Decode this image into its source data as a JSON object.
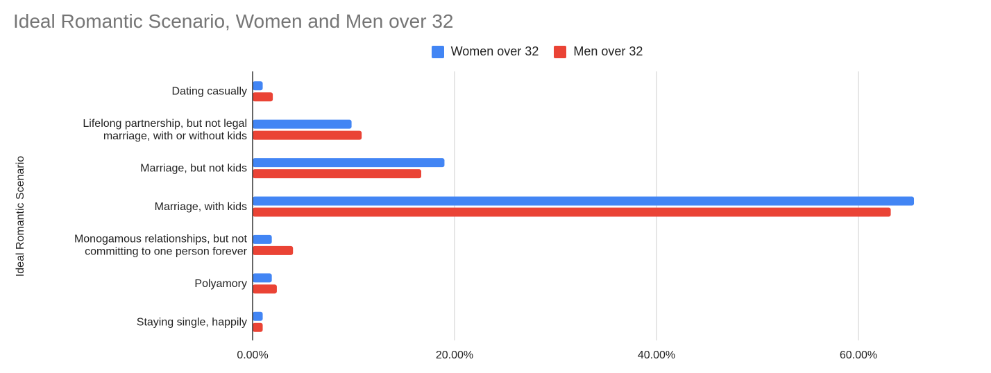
{
  "title": "Ideal Romantic Scenario, Women and Men over 32",
  "colors": {
    "women": "#4285F4",
    "men": "#EA4335",
    "grid": "#cccccc",
    "axis": "#333333",
    "text": "#222222",
    "title": "#757575"
  },
  "chart_data": {
    "type": "bar",
    "orientation": "horizontal",
    "title": "Ideal Romantic Scenario, Women and Men over 32",
    "ylabel": "Ideal Romantic Scenario",
    "xlabel": "",
    "categories": [
      [
        "Dating casually"
      ],
      [
        "Lifelong partnership, but not legal",
        "marriage, with or without kids"
      ],
      [
        "Marriage, but not kids"
      ],
      [
        "Marriage, with kids"
      ],
      [
        "Monogamous relationships, but not",
        "committing to one person forever"
      ],
      [
        "Polyamory"
      ],
      [
        "Staying single, happily"
      ]
    ],
    "series": [
      {
        "name": "Women over 32",
        "color": "#4285F4",
        "values": [
          1.0,
          9.8,
          19.0,
          65.5,
          1.9,
          1.9,
          1.0
        ]
      },
      {
        "name": "Men over 32",
        "color": "#EA4335",
        "values": [
          2.0,
          10.8,
          16.7,
          63.2,
          4.0,
          2.4,
          1.0
        ]
      }
    ],
    "xlim": [
      0,
      70
    ],
    "xticks": [
      0,
      20,
      40,
      60
    ],
    "xtick_labels": [
      "0.00%",
      "20.00%",
      "40.00%",
      "60.00%"
    ],
    "grid": true,
    "legend_position": "top-center"
  }
}
